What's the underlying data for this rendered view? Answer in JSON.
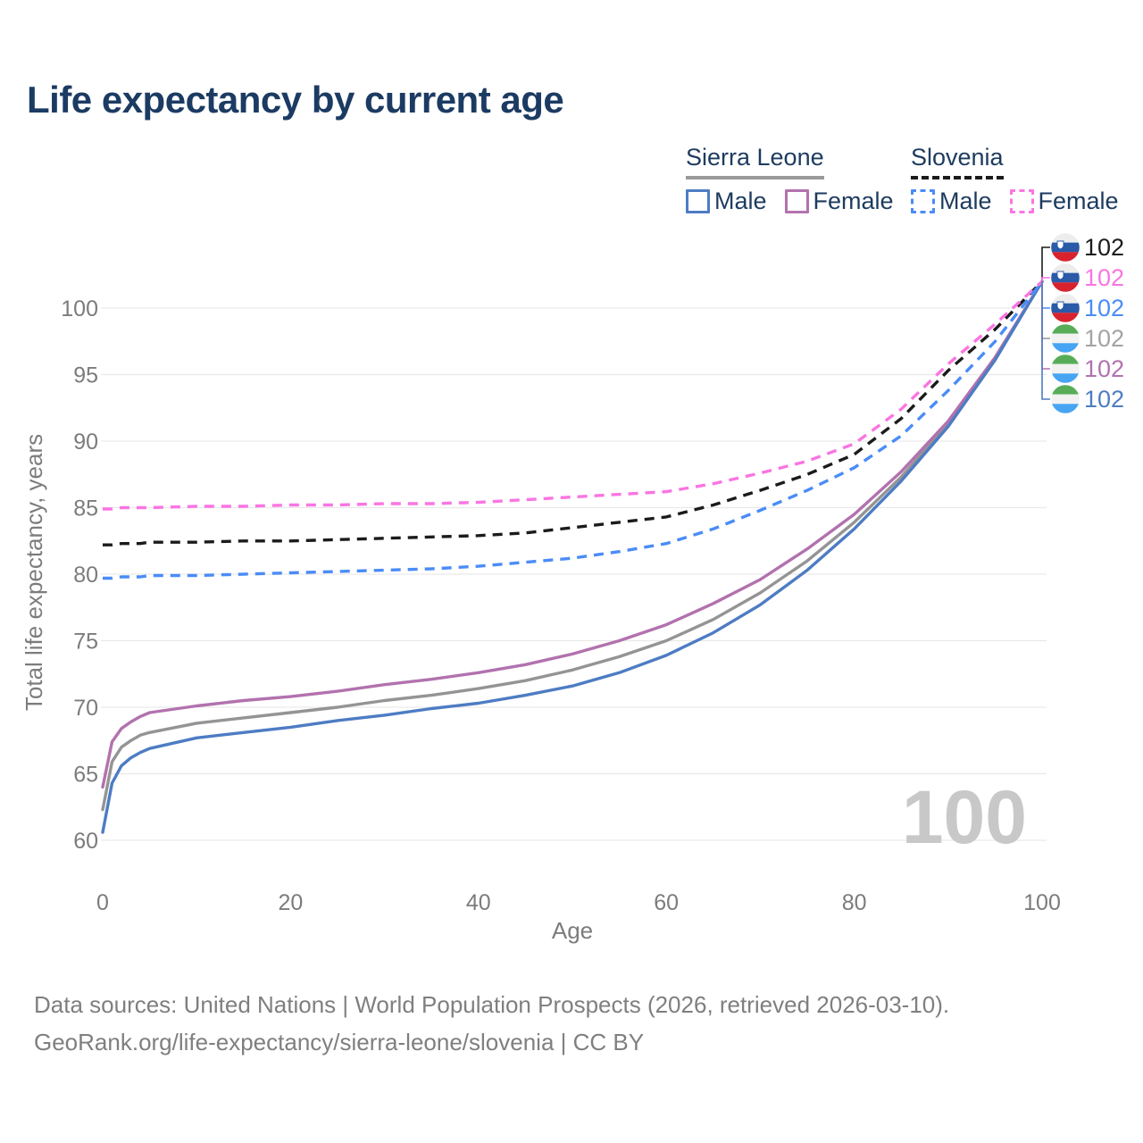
{
  "title": "Life expectancy by current age",
  "legend": {
    "groups": [
      {
        "country": "Sierra Leone",
        "line_style": "solid",
        "line_color": "#9a9a9a",
        "items": [
          {
            "label": "Male",
            "color": "#4d7cc3",
            "box_style": "solid"
          },
          {
            "label": "Female",
            "color": "#b272ae",
            "box_style": "solid"
          }
        ]
      },
      {
        "country": "Slovenia",
        "line_style": "dashed",
        "line_color": "#1b1b1b",
        "items": [
          {
            "label": "Male",
            "color": "#4a8cf7",
            "box_style": "dashed"
          },
          {
            "label": "Female",
            "color": "#fa75e2",
            "box_style": "dashed"
          }
        ]
      }
    ]
  },
  "watermark": {
    "text": "100",
    "color": "#c8c8c8"
  },
  "flags": {
    "slovenia": {
      "bands": [
        "#ededed",
        "#2a5aa8",
        "#d8232e"
      ],
      "shield": true
    },
    "sierra_leone": {
      "bands": [
        "#57ad57",
        "#f2f2f2",
        "#47a4f2"
      ],
      "shield": false
    }
  },
  "chart_data": {
    "type": "line",
    "title": "Life expectancy by current age",
    "xlabel": "Age",
    "ylabel": "Total life expectancy, years",
    "x_ticks": [
      0,
      20,
      40,
      60,
      80,
      100
    ],
    "y_ticks": [
      60,
      65,
      70,
      75,
      80,
      85,
      90,
      95,
      100
    ],
    "xlim": [
      0,
      100
    ],
    "ylim": [
      60,
      103
    ],
    "grid": "horizontal",
    "grid_color": "#e9e9e9",
    "axis_color": "#7c7c7c",
    "ages": [
      0,
      1,
      2,
      3,
      4,
      5,
      10,
      15,
      20,
      25,
      30,
      35,
      40,
      45,
      50,
      55,
      60,
      65,
      70,
      75,
      80,
      85,
      90,
      95,
      100
    ],
    "series": [
      {
        "name": "Slovenia Both sexes",
        "country": "Slovenia",
        "sex": "Both sexes",
        "color": "#1b1b1b",
        "dashed": true,
        "flag": "slovenia",
        "end_label": "102",
        "end_label_color": "#1b1b1b",
        "values": [
          82.2,
          82.2,
          82.3,
          82.3,
          82.3,
          82.4,
          82.4,
          82.5,
          82.5,
          82.6,
          82.7,
          82.8,
          82.9,
          83.1,
          83.5,
          83.9,
          84.3,
          85.2,
          86.3,
          87.5,
          89.0,
          91.7,
          95.3,
          98.4,
          102
        ]
      },
      {
        "name": "Slovenia Female",
        "country": "Slovenia",
        "sex": "Female",
        "color": "#fa75e2",
        "dashed": true,
        "flag": "slovenia",
        "end_label": "102",
        "end_label_color": "#fa75e2",
        "values": [
          84.9,
          84.9,
          85.0,
          85.0,
          85.0,
          85.0,
          85.1,
          85.1,
          85.2,
          85.2,
          85.3,
          85.3,
          85.4,
          85.6,
          85.8,
          86.0,
          86.2,
          86.8,
          87.6,
          88.5,
          89.8,
          92.4,
          95.8,
          98.8,
          102
        ]
      },
      {
        "name": "Slovenia Male",
        "country": "Slovenia",
        "sex": "Male",
        "color": "#4a8cf7",
        "dashed": true,
        "flag": "slovenia",
        "end_label": "102",
        "end_label_color": "#4a8cf7",
        "values": [
          79.7,
          79.7,
          79.8,
          79.8,
          79.8,
          79.9,
          79.9,
          80.0,
          80.1,
          80.2,
          80.3,
          80.4,
          80.6,
          80.9,
          81.2,
          81.7,
          82.3,
          83.4,
          84.8,
          86.3,
          88.0,
          90.4,
          93.8,
          97.5,
          102
        ]
      },
      {
        "name": "Sierra Leone Both sexes",
        "country": "Sierra Leone",
        "sex": "Both sexes",
        "color": "#949494",
        "dashed": false,
        "flag": "sierra_leone",
        "end_label": "102",
        "end_label_color": "#a3a3a3",
        "values": [
          62.3,
          65.9,
          67.0,
          67.5,
          67.9,
          68.1,
          68.8,
          69.2,
          69.6,
          70.0,
          70.5,
          70.9,
          71.4,
          72.0,
          72.8,
          73.8,
          75.0,
          76.6,
          78.6,
          81.0,
          83.9,
          87.3,
          91.3,
          96.2,
          102
        ]
      },
      {
        "name": "Sierra Leone Female",
        "country": "Sierra Leone",
        "sex": "Female",
        "color": "#b272ae",
        "dashed": false,
        "flag": "sierra_leone",
        "end_label": "102",
        "end_label_color": "#b272ae",
        "values": [
          64.0,
          67.4,
          68.4,
          68.9,
          69.3,
          69.6,
          70.1,
          70.5,
          70.8,
          71.2,
          71.7,
          72.1,
          72.6,
          73.2,
          74.0,
          75.0,
          76.2,
          77.8,
          79.6,
          81.9,
          84.5,
          87.7,
          91.5,
          96.3,
          102
        ]
      },
      {
        "name": "Sierra Leone Male",
        "country": "Sierra Leone",
        "sex": "Male",
        "color": "#4d7cc3",
        "dashed": false,
        "flag": "sierra_leone",
        "end_label": "102",
        "end_label_color": "#4d7cc3",
        "values": [
          60.6,
          64.3,
          65.6,
          66.2,
          66.6,
          66.9,
          67.7,
          68.1,
          68.5,
          69.0,
          69.4,
          69.9,
          70.3,
          70.9,
          71.6,
          72.6,
          73.9,
          75.6,
          77.7,
          80.3,
          83.4,
          87.0,
          91.1,
          96.1,
          102
        ]
      }
    ]
  },
  "footer": {
    "line1": "Data sources: United Nations | World Population Prospects (2026, retrieved 2026-03-10).",
    "line2": "GeoRank.org/life-expectancy/sierra-leone/slovenia | CC BY"
  }
}
